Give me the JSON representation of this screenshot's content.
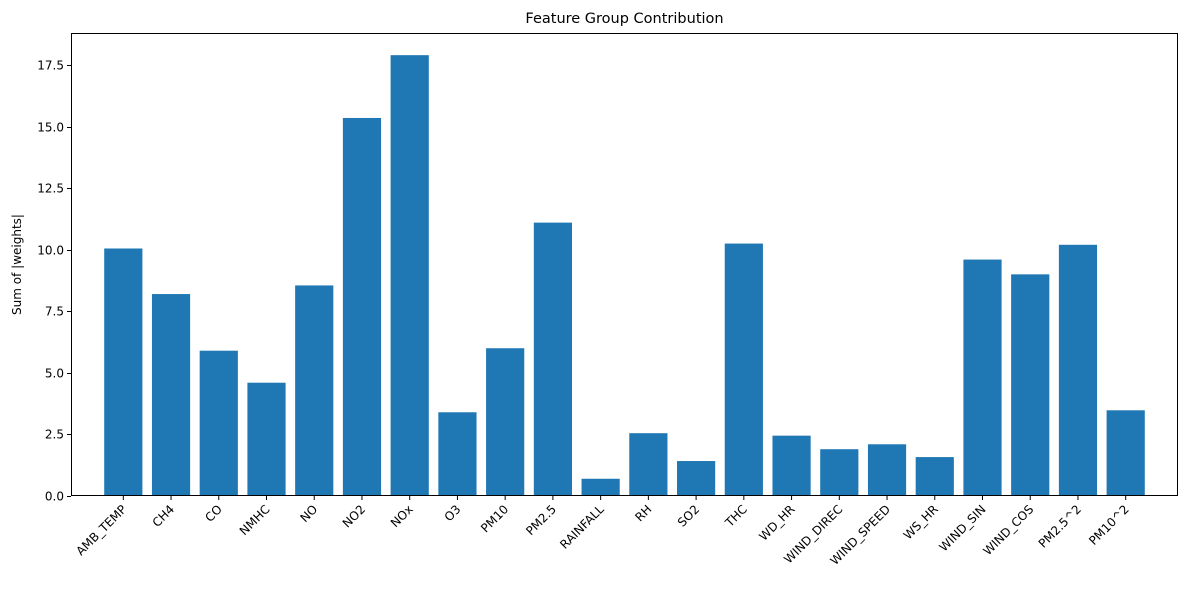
{
  "chart_data": {
    "type": "bar",
    "title": "Feature Group Contribution",
    "xlabel": "",
    "ylabel": "Sum of |weights|",
    "ylim": [
      0,
      18.8
    ],
    "yticks": [
      0.0,
      2.5,
      5.0,
      7.5,
      10.0,
      12.5,
      15.0,
      17.5
    ],
    "ytick_labels": [
      "0.0",
      "2.5",
      "5.0",
      "7.5",
      "10.0",
      "12.5",
      "15.0",
      "17.5"
    ],
    "categories": [
      "AMB_TEMP",
      "CH4",
      "CO",
      "NMHC",
      "NO",
      "NO2",
      "NOx",
      "O3",
      "PM10",
      "PM2.5",
      "RAINFALL",
      "RH",
      "SO2",
      "THC",
      "WD_HR",
      "WIND_DIREC",
      "WIND_SPEED",
      "WS_HR",
      "WIND_SIN",
      "WIND_COS",
      "PM2.5^2",
      "PM10^2"
    ],
    "values": [
      10.05,
      8.2,
      5.9,
      4.6,
      8.55,
      15.35,
      17.9,
      3.4,
      6.0,
      11.1,
      0.7,
      2.55,
      1.42,
      10.25,
      2.45,
      1.9,
      2.1,
      1.58,
      9.6,
      9.0,
      10.2,
      3.48
    ],
    "grid": false,
    "legend": "none",
    "bar_color": "#1f77b4"
  }
}
